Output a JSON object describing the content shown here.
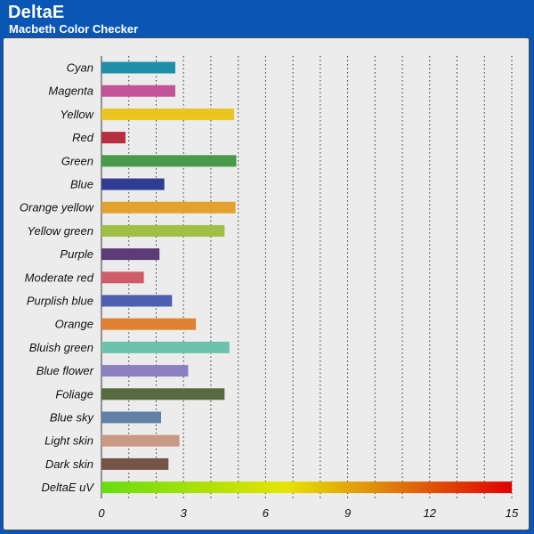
{
  "header": {
    "title": "DeltaE",
    "subtitle": "Macbeth Color Checker"
  },
  "chart_data": {
    "type": "bar",
    "orientation": "horizontal",
    "title": "DeltaE",
    "subtitle": "Macbeth Color Checker",
    "xlabel": "",
    "ylabel": "",
    "xlim": [
      0,
      15
    ],
    "xticks": [
      0,
      3,
      6,
      9,
      12,
      15
    ],
    "grid": "vertical dotted",
    "categories": [
      "Cyan",
      "Magenta",
      "Yellow",
      "Red",
      "Green",
      "Blue",
      "Orange yellow",
      "Yellow green",
      "Purple",
      "Moderate red",
      "Purplish blue",
      "Orange",
      "Bluish green",
      "Blue flower",
      "Foliage",
      "Blue sky",
      "Light skin",
      "Dark skin",
      "DeltaE uV"
    ],
    "values": [
      2.7,
      2.7,
      4.85,
      0.88,
      4.93,
      2.3,
      4.9,
      4.5,
      2.12,
      1.55,
      2.58,
      3.45,
      4.68,
      3.17,
      4.5,
      2.18,
      2.85,
      2.45,
      15.0
    ],
    "colors": [
      "#1e8fa6",
      "#c25399",
      "#e9c61f",
      "#b72f43",
      "#4a9a4c",
      "#313d95",
      "#e3a22f",
      "#9fc044",
      "#5d3a78",
      "#cf5d68",
      "#4c5fb0",
      "#e08030",
      "#6cc3ac",
      "#8c80be",
      "#56693f",
      "#6180a5",
      "#c89a86",
      "#755447",
      "gradient"
    ],
    "gradient_colors": [
      "#66dd11",
      "#e6e400",
      "#e07f0a",
      "#e00000"
    ]
  }
}
